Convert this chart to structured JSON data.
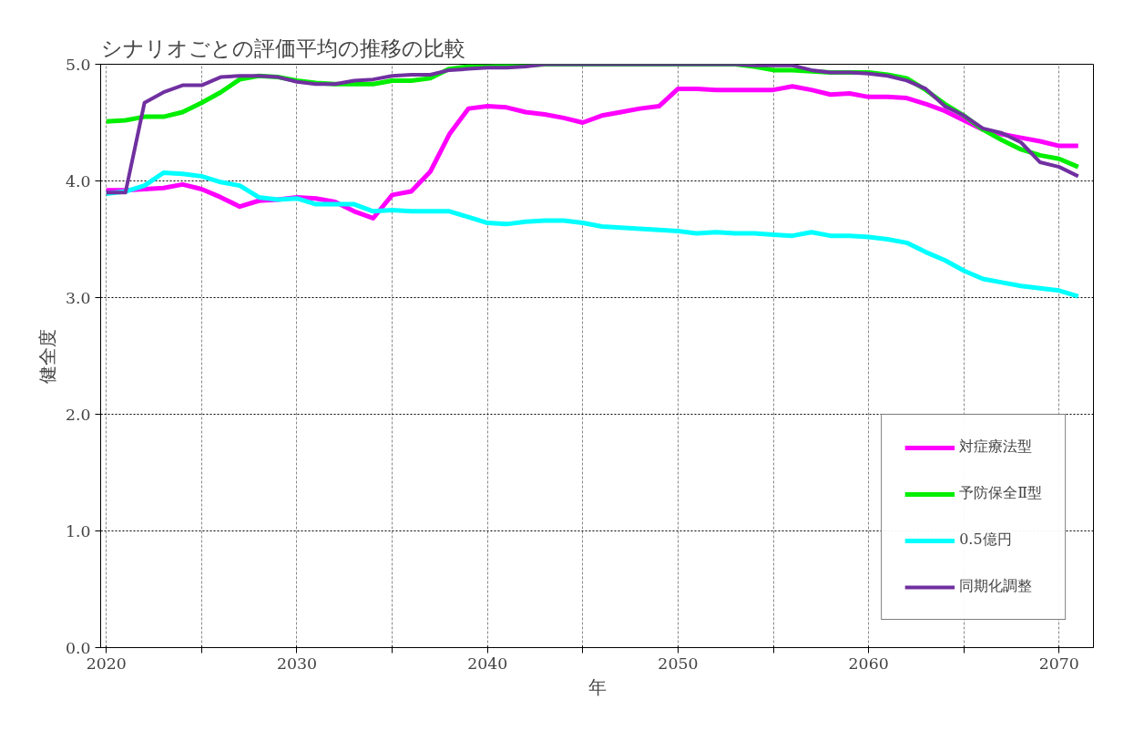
{
  "chart_data": {
    "type": "line",
    "title": "シナリオごとの評価平均の推移の比較",
    "xlabel": "年",
    "ylabel": "健全度",
    "x": [
      2020,
      2021,
      2022,
      2023,
      2024,
      2025,
      2026,
      2027,
      2028,
      2029,
      2030,
      2031,
      2032,
      2033,
      2034,
      2035,
      2036,
      2037,
      2038,
      2039,
      2040,
      2041,
      2042,
      2043,
      2044,
      2045,
      2046,
      2047,
      2048,
      2049,
      2050,
      2051,
      2052,
      2053,
      2054,
      2055,
      2056,
      2057,
      2058,
      2059,
      2060,
      2061,
      2062,
      2063,
      2064,
      2065,
      2066,
      2067,
      2068,
      2069,
      2070,
      2071
    ],
    "series": [
      {
        "name": "対症療法型",
        "color": "#ff00ff",
        "values": [
          3.92,
          3.92,
          3.93,
          3.94,
          3.97,
          3.93,
          3.86,
          3.78,
          3.83,
          3.84,
          3.86,
          3.85,
          3.82,
          3.74,
          3.68,
          3.88,
          3.91,
          4.08,
          4.4,
          4.62,
          4.64,
          4.63,
          4.59,
          4.57,
          4.54,
          4.5,
          4.56,
          4.59,
          4.62,
          4.64,
          4.79,
          4.79,
          4.78,
          4.78,
          4.78,
          4.78,
          4.81,
          4.78,
          4.74,
          4.75,
          4.72,
          4.72,
          4.71,
          4.66,
          4.6,
          4.52,
          4.44,
          4.4,
          4.37,
          4.34,
          4.3,
          4.3
        ]
      },
      {
        "name": "予防保全Ⅱ型",
        "color": "#00ee00",
        "values": [
          4.51,
          4.52,
          4.55,
          4.55,
          4.59,
          4.67,
          4.76,
          4.87,
          4.9,
          4.89,
          4.86,
          4.84,
          4.83,
          4.83,
          4.83,
          4.86,
          4.86,
          4.88,
          4.96,
          4.98,
          4.98,
          4.99,
          4.99,
          5.0,
          5.0,
          5.0,
          5.0,
          5.0,
          5.0,
          5.0,
          5.0,
          5.0,
          5.0,
          5.0,
          4.98,
          4.95,
          4.95,
          4.94,
          4.93,
          4.93,
          4.93,
          4.91,
          4.88,
          4.78,
          4.66,
          4.56,
          4.44,
          4.35,
          4.27,
          4.22,
          4.19,
          4.12
        ]
      },
      {
        "name": "0.5億円",
        "color": "#00ffff",
        "values": [
          3.89,
          3.91,
          3.96,
          4.07,
          4.06,
          4.04,
          3.99,
          3.96,
          3.86,
          3.84,
          3.85,
          3.8,
          3.8,
          3.8,
          3.74,
          3.75,
          3.74,
          3.74,
          3.74,
          3.69,
          3.64,
          3.63,
          3.65,
          3.66,
          3.66,
          3.64,
          3.61,
          3.6,
          3.59,
          3.58,
          3.57,
          3.55,
          3.56,
          3.55,
          3.55,
          3.54,
          3.53,
          3.56,
          3.53,
          3.53,
          3.52,
          3.5,
          3.47,
          3.39,
          3.32,
          3.23,
          3.16,
          3.13,
          3.1,
          3.08,
          3.06,
          3.01
        ]
      },
      {
        "name": "同期化調整",
        "color": "#7030a0",
        "values": [
          3.9,
          3.9,
          4.67,
          4.76,
          4.82,
          4.82,
          4.89,
          4.9,
          4.9,
          4.89,
          4.85,
          4.83,
          4.83,
          4.86,
          4.87,
          4.9,
          4.91,
          4.91,
          4.95,
          4.96,
          4.97,
          4.97,
          4.98,
          5.0,
          5.0,
          5.0,
          5.0,
          5.0,
          5.0,
          5.0,
          5.0,
          5.0,
          5.0,
          5.0,
          4.99,
          4.99,
          4.99,
          4.95,
          4.93,
          4.93,
          4.92,
          4.9,
          4.86,
          4.79,
          4.64,
          4.56,
          4.45,
          4.41,
          4.33,
          4.16,
          4.12,
          4.04
        ]
      }
    ],
    "xlim": [
      2019.7,
      2071.8
    ],
    "ylim": [
      0,
      5
    ],
    "xticks": [
      2020,
      {
        "value": 2025,
        "label": null
      },
      2030,
      {
        "value": 2035,
        "label": null
      },
      2040,
      {
        "value": 2045,
        "label": null
      },
      2050,
      {
        "value": 2055,
        "label": null
      },
      2060,
      {
        "value": 2065,
        "label": null
      },
      2070
    ],
    "yticks": [
      {
        "value": 0,
        "label": "0.0"
      },
      {
        "value": 1,
        "label": "1.0"
      },
      {
        "value": 2,
        "label": "2.0"
      },
      {
        "value": 3,
        "label": "3.0"
      },
      {
        "value": 4,
        "label": "4.0"
      },
      {
        "value": 5,
        "label": "5.0"
      }
    ],
    "grid": true,
    "legend": "bottom right",
    "marker": "none",
    "line_style": "solid"
  }
}
